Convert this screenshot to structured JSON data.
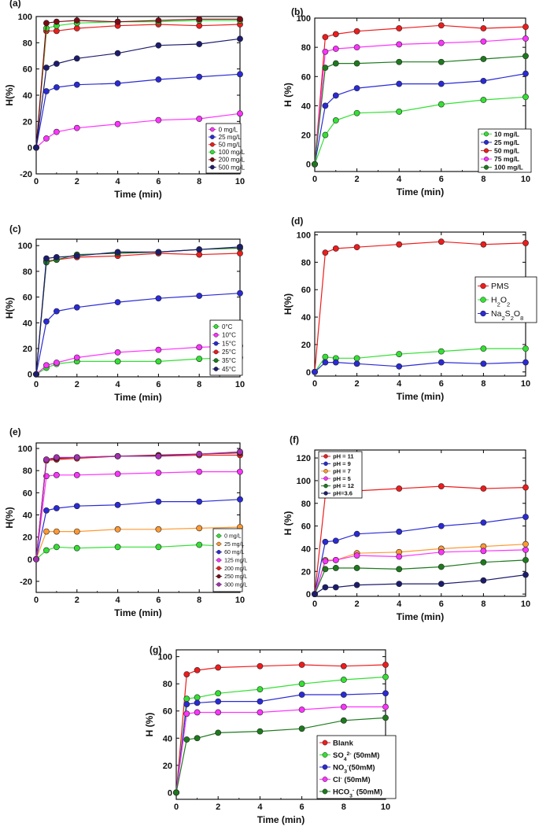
{
  "chart_data": [
    {
      "panel": "(a)",
      "type": "line",
      "xlabel": "Time (min)",
      "ylabel": "H(%)",
      "xlim": [
        0,
        10
      ],
      "ylim": [
        -20,
        100
      ],
      "xticks": [
        "0",
        "2",
        "4",
        "6",
        "8",
        "10"
      ],
      "yticks": [
        "-20",
        "0",
        "20",
        "40",
        "60",
        "80",
        "100"
      ],
      "legend_position": "bottom-right",
      "legend_bold": false,
      "x": [
        0,
        0.5,
        1,
        2,
        4,
        6,
        8,
        10
      ],
      "series": [
        {
          "name": "0 mg/L",
          "color": "#ff33ff",
          "values": [
            0,
            7,
            12,
            15,
            18,
            21,
            22,
            26
          ]
        },
        {
          "name": "25 mg/L",
          "color": "#2a2ad6",
          "values": [
            0,
            43,
            46,
            48,
            49,
            52,
            54,
            56
          ]
        },
        {
          "name": "50 mg/L",
          "color": "#ee1c1c",
          "values": [
            0,
            89,
            89,
            91,
            93,
            94,
            93,
            94
          ]
        },
        {
          "name": "100 mg/L",
          "color": "#33e033",
          "values": [
            0,
            91,
            93,
            95,
            96,
            96,
            97,
            97
          ]
        },
        {
          "name": "200 mg/L",
          "color": "#7a0a14",
          "values": [
            0,
            95,
            96,
            97,
            96,
            97,
            98,
            98
          ]
        },
        {
          "name": "500 mg/L",
          "color": "#1c1c6e",
          "values": [
            0,
            61,
            64,
            68,
            72,
            78,
            79,
            83
          ]
        }
      ]
    },
    {
      "panel": "(b)",
      "type": "line",
      "xlabel": "Time (min)",
      "ylabel": "H (%)",
      "xlim": [
        0,
        10
      ],
      "ylim": [
        -5,
        100
      ],
      "xticks": [
        "0",
        "2",
        "4",
        "6",
        "8",
        "10"
      ],
      "yticks": [
        "0",
        "20",
        "40",
        "60",
        "80",
        "100"
      ],
      "legend_position": "bottom-right",
      "legend_bold": true,
      "x": [
        0,
        0.5,
        1,
        2,
        4,
        6,
        8,
        10
      ],
      "series": [
        {
          "name": "10 mg/L",
          "color": "#33e033",
          "values": [
            0,
            20,
            30,
            35,
            36,
            41,
            44,
            46
          ]
        },
        {
          "name": "25 mg/L",
          "color": "#2a2ad6",
          "values": [
            0,
            40,
            47,
            52,
            55,
            55,
            57,
            62
          ]
        },
        {
          "name": "50 mg/L",
          "color": "#ee1c1c",
          "values": [
            0,
            87,
            89,
            91,
            93,
            95,
            93,
            94
          ]
        },
        {
          "name": "75 mg/L",
          "color": "#ff33ff",
          "values": [
            0,
            77,
            79,
            80,
            82,
            83,
            84,
            86
          ]
        },
        {
          "name": "100 mg/L",
          "color": "#1d7a1d",
          "values": [
            0,
            66,
            69,
            69,
            70,
            70,
            72,
            74
          ]
        }
      ]
    },
    {
      "panel": "(c)",
      "type": "line",
      "xlabel": "Time (min)",
      "ylabel": "H(%)",
      "xlim": [
        0,
        10
      ],
      "ylim": [
        -2,
        105
      ],
      "xticks": [
        "0",
        "2",
        "4",
        "6",
        "8",
        "10"
      ],
      "yticks": [
        "0",
        "20",
        "40",
        "60",
        "80",
        "100"
      ],
      "legend_position": "bottom-right",
      "legend_bold": false,
      "x": [
        0,
        0.5,
        1,
        2,
        4,
        6,
        8,
        10
      ],
      "series": [
        {
          "name": "0°C",
          "color": "#33e033",
          "values": [
            0,
            5,
            8,
            10,
            10,
            10,
            12,
            13
          ]
        },
        {
          "name": "10°C",
          "color": "#ff33ff",
          "values": [
            0,
            7,
            9,
            13,
            17,
            19,
            21,
            22
          ]
        },
        {
          "name": "15°C",
          "color": "#2a2ad6",
          "values": [
            0,
            41,
            49,
            52,
            56,
            59,
            61,
            63
          ]
        },
        {
          "name": "25°C",
          "color": "#ee1c1c",
          "values": [
            0,
            88,
            89,
            91,
            92,
            94,
            93,
            94
          ]
        },
        {
          "name": "35°C",
          "color": "#1d7a1d",
          "values": [
            0,
            87,
            89,
            93,
            94,
            95,
            97,
            98
          ]
        },
        {
          "name": "45°C",
          "color": "#1c1c6e",
          "values": [
            0,
            90,
            91,
            92,
            95,
            95,
            97,
            99
          ]
        }
      ]
    },
    {
      "panel": "(d)",
      "type": "line",
      "xlabel": "Time (min)",
      "ylabel": "H(%)",
      "xlim": [
        0,
        10
      ],
      "ylim": [
        -3,
        102
      ],
      "xticks": [
        "0",
        "2",
        "4",
        "6",
        "8",
        "10"
      ],
      "yticks": [
        "0",
        "20",
        "40",
        "60",
        "80",
        "100"
      ],
      "legend_position": "center-right",
      "legend_bold": false,
      "x": [
        0,
        0.5,
        1,
        2,
        4,
        6,
        8,
        10
      ],
      "series": [
        {
          "name": "PMS",
          "color": "#ee1c1c",
          "values": [
            0,
            87,
            90,
            91,
            93,
            95,
            93,
            94
          ]
        },
        {
          "name": "H2O2",
          "label_parts": [
            "H",
            "2",
            "O",
            "2",
            ""
          ],
          "color": "#33e033",
          "values": [
            0,
            11,
            10,
            10,
            13,
            15,
            17,
            17
          ]
        },
        {
          "name": "Na2S2O8",
          "label_parts": [
            "Na",
            "2",
            "S",
            "2",
            "O",
            "8",
            ""
          ],
          "color": "#2a2ad6",
          "values": [
            0,
            7,
            7,
            6,
            4,
            7,
            6,
            7
          ]
        }
      ]
    },
    {
      "panel": "(e)",
      "type": "line",
      "xlabel": "Time (min)",
      "ylabel": "H(%)",
      "xlim": [
        0,
        10
      ],
      "ylim": [
        -30,
        105
      ],
      "xticks": [
        "0",
        "2",
        "4",
        "6",
        "8",
        "10"
      ],
      "yticks": [
        "-20",
        "0",
        "20",
        "40",
        "60",
        "80",
        "100"
      ],
      "legend_position": "bottom-right",
      "legend_bold": false,
      "x": [
        0,
        0.5,
        1,
        2,
        4,
        6,
        8,
        10
      ],
      "series": [
        {
          "name": "0 mg/L",
          "color": "#33e033",
          "values": [
            0,
            8,
            11,
            10,
            11,
            11,
            13,
            11
          ]
        },
        {
          "name": "25 mg/L",
          "color": "#ff9933",
          "values": [
            0,
            25,
            25,
            25,
            27,
            27,
            28,
            29
          ]
        },
        {
          "name": "60 mg/L",
          "color": "#2a2ad6",
          "values": [
            0,
            44,
            46,
            48,
            49,
            52,
            52,
            54
          ]
        },
        {
          "name": "125 mg/L",
          "color": "#ff33ff",
          "values": [
            0,
            75,
            76,
            76,
            77,
            78,
            79,
            79
          ]
        },
        {
          "name": "200 mg/L",
          "color": "#ee1c1c",
          "values": [
            0,
            89,
            90,
            91,
            93,
            93,
            94,
            94
          ]
        },
        {
          "name": "250 mg/L",
          "color": "#7a0a14",
          "values": [
            0,
            90,
            91,
            92,
            93,
            94,
            95,
            96
          ]
        },
        {
          "name": "300 mg/L",
          "color": "#a32fb0",
          "values": [
            0,
            90,
            92,
            92,
            93,
            93,
            95,
            97
          ]
        }
      ]
    },
    {
      "panel": "(f)",
      "type": "line",
      "xlabel": "Time (min)",
      "ylabel": "H (%)",
      "xlim": [
        0,
        10
      ],
      "ylim": [
        -2,
        127
      ],
      "xticks": [
        "0",
        "2",
        "4",
        "6",
        "8",
        "10"
      ],
      "yticks": [
        "0",
        "20",
        "40",
        "60",
        "80",
        "100",
        "120"
      ],
      "legend_position": "top-left",
      "legend_bold": true,
      "x": [
        0,
        0.5,
        1,
        2,
        4,
        6,
        8,
        10
      ],
      "series": [
        {
          "name": "pH = 11",
          "color": "#ee1c1c",
          "values": [
            0,
            87,
            90,
            91,
            93,
            95,
            93,
            94
          ]
        },
        {
          "name": "pH = 9",
          "color": "#2a2ad6",
          "values": [
            0,
            46,
            47,
            53,
            55,
            60,
            63,
            68
          ]
        },
        {
          "name": "pH = 7",
          "color": "#ff9933",
          "values": [
            0,
            30,
            30,
            36,
            37,
            40,
            42,
            44
          ]
        },
        {
          "name": "pH = 5",
          "color": "#ff33ff",
          "values": [
            0,
            29,
            30,
            34,
            33,
            37,
            38,
            39
          ]
        },
        {
          "name": "pH = 12",
          "color": "#1d7a1d",
          "values": [
            0,
            22,
            23,
            23,
            22,
            24,
            28,
            30
          ]
        },
        {
          "name": "pH=3.6",
          "color": "#1c1c6e",
          "values": [
            0,
            6,
            6,
            8,
            9,
            9,
            12,
            17
          ]
        }
      ]
    },
    {
      "panel": "(g)",
      "type": "line",
      "xlabel": "Time (min)",
      "ylabel": "H (%)",
      "xlim": [
        0,
        10
      ],
      "ylim": [
        -5,
        105
      ],
      "xticks": [
        "0",
        "2",
        "4",
        "6",
        "8",
        "10"
      ],
      "yticks": [
        "0",
        "20",
        "40",
        "60",
        "80",
        "100"
      ],
      "legend_position": "bottom-right",
      "legend_bold": true,
      "x": [
        0,
        0.5,
        1,
        2,
        4,
        6,
        8,
        10
      ],
      "series": [
        {
          "name": "Blank",
          "color": "#ee1c1c",
          "values": [
            0,
            87,
            90,
            92,
            93,
            94,
            93,
            94
          ]
        },
        {
          "name": "SO42- (50mM)",
          "label_parts": [
            "SO",
            "4",
            "",
            "2-",
            " (50mM)"
          ],
          "color": "#33e033",
          "values": [
            0,
            69,
            70,
            73,
            76,
            80,
            83,
            85
          ]
        },
        {
          "name": "NO3- (50mM)",
          "label_parts": [
            "NO",
            "3",
            "",
            "-",
            "(50mM)"
          ],
          "color": "#2a2ad6",
          "values": [
            0,
            65,
            66,
            67,
            67,
            72,
            72,
            73
          ]
        },
        {
          "name": "Cl- (50mM)",
          "label_parts": [
            "Cl",
            "",
            "",
            "-",
            " (50mM)"
          ],
          "color": "#ff33ff",
          "values": [
            0,
            58,
            59,
            59,
            59,
            61,
            63,
            63
          ]
        },
        {
          "name": "HCO3- (50mM)",
          "label_parts": [
            "HCO",
            "3",
            "",
            "-",
            " (50mM)"
          ],
          "color": "#1d7a1d",
          "values": [
            0,
            39,
            40,
            44,
            45,
            47,
            53,
            55
          ]
        }
      ]
    }
  ]
}
